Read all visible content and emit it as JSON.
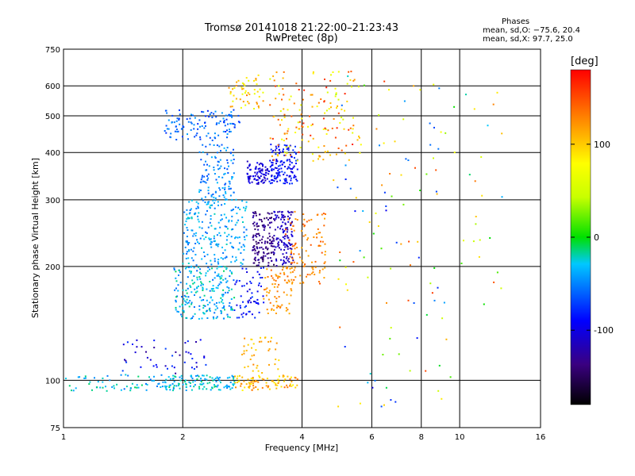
{
  "header": {
    "title": "Tromsø 20141018 21:22:00–21:23:43",
    "subtitle": "RwPretec (8p)"
  },
  "stats": {
    "heading": "Phases",
    "line_o": "mean, sd,O: −75.6, 20.4",
    "line_x": "mean, sd,X:  97.7, 25.0"
  },
  "colorbar": {
    "unit": "[deg]",
    "ticks": [
      100,
      0,
      -100
    ],
    "range": [
      -180,
      180
    ],
    "palette": "rainbow"
  },
  "chart_data": {
    "type": "scatter",
    "xlabel": "Frequency [MHz]",
    "ylabel": "Stationary phase Virtual Height [km]",
    "xscale": "log",
    "yscale": "log",
    "xlim": [
      1,
      16
    ],
    "ylim": [
      75,
      750
    ],
    "xticks": [
      1,
      2,
      4,
      6,
      8,
      10,
      16
    ],
    "yticks": [
      75,
      100,
      200,
      300,
      400,
      500,
      600,
      750
    ],
    "grid": true,
    "color_by": "phase (deg)",
    "clusters": [
      {
        "f": [
          1.0,
          1.8
        ],
        "h": [
          93,
          104
        ],
        "phase": [
          -60,
          -10
        ],
        "n": 60
      },
      {
        "f": [
          1.8,
          2.7
        ],
        "h": [
          94,
          103
        ],
        "phase": [
          -50,
          -10
        ],
        "n": 120
      },
      {
        "f": [
          2.7,
          3.9
        ],
        "h": [
          94,
          103
        ],
        "phase": [
          80,
          140
        ],
        "n": 90
      },
      {
        "f": [
          1.4,
          2.3
        ],
        "h": [
          104,
          130
        ],
        "phase": [
          -130,
          -70
        ],
        "n": 45
      },
      {
        "f": [
          2.8,
          3.5
        ],
        "h": [
          104,
          130
        ],
        "phase": [
          90,
          130
        ],
        "n": 40
      },
      {
        "f": [
          1.9,
          2.7
        ],
        "h": [
          145,
          200
        ],
        "phase": [
          -60,
          -10
        ],
        "n": 220
      },
      {
        "f": [
          2.7,
          3.2
        ],
        "h": [
          145,
          200
        ],
        "phase": [
          -110,
          -70
        ],
        "n": 60
      },
      {
        "f": [
          3.2,
          3.8
        ],
        "h": [
          150,
          200
        ],
        "phase": [
          110,
          140
        ],
        "n": 70
      },
      {
        "f": [
          2.0,
          2.9
        ],
        "h": [
          200,
          300
        ],
        "phase": [
          -60,
          -20
        ],
        "n": 220
      },
      {
        "f": [
          3.0,
          3.4
        ],
        "h": [
          200,
          280
        ],
        "phase": [
          -150,
          -120
        ],
        "n": 140
      },
      {
        "f": [
          3.4,
          3.8
        ],
        "h": [
          200,
          280
        ],
        "phase": [
          -130,
          -100
        ],
        "n": 120
      },
      {
        "f": [
          3.6,
          4.6
        ],
        "h": [
          180,
          280
        ],
        "phase": [
          110,
          150
        ],
        "n": 110
      },
      {
        "f": [
          2.2,
          2.7
        ],
        "h": [
          300,
          420
        ],
        "phase": [
          -70,
          -30
        ],
        "n": 110
      },
      {
        "f": [
          2.9,
          3.3
        ],
        "h": [
          330,
          380
        ],
        "phase": [
          -120,
          -90
        ],
        "n": 80
      },
      {
        "f": [
          3.3,
          3.9
        ],
        "h": [
          330,
          420
        ],
        "phase": [
          -110,
          -70
        ],
        "n": 140
      },
      {
        "f": [
          1.8,
          2.8
        ],
        "h": [
          430,
          520
        ],
        "phase": [
          -80,
          -40
        ],
        "n": 120
      },
      {
        "f": [
          2.6,
          3.2
        ],
        "h": [
          520,
          640
        ],
        "phase": [
          60,
          130
        ],
        "n": 50
      },
      {
        "f": [
          3.3,
          5.6
        ],
        "h": [
          380,
          660
        ],
        "phase": [
          50,
          170
        ],
        "n": 160
      },
      {
        "f": [
          4.8,
          9.5
        ],
        "h": [
          85,
          640
        ],
        "phase": [
          -110,
          160
        ],
        "n": 110
      },
      {
        "f": [
          9.5,
          13.0
        ],
        "h": [
          150,
          620
        ],
        "phase": [
          -40,
          160
        ],
        "n": 25
      }
    ]
  }
}
